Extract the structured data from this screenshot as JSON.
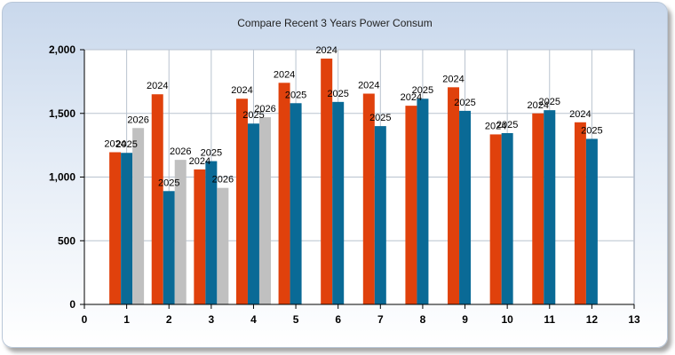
{
  "chart_data": {
    "type": "bar",
    "title": "Compare Recent 3 Years Power Consum",
    "xlabel": "",
    "ylabel": "",
    "x_ticks": [
      0,
      1,
      2,
      3,
      4,
      5,
      6,
      7,
      8,
      9,
      10,
      11,
      12,
      13
    ],
    "xlim": [
      0,
      13
    ],
    "ylim": [
      0,
      2000
    ],
    "y_ticks": [
      0,
      500,
      1000,
      1500,
      2000
    ],
    "y_tick_labels": [
      "0",
      "500",
      "1,000",
      "1,500",
      "2,000"
    ],
    "grid": true,
    "legend": "none",
    "series": [
      {
        "label": "2024",
        "color": "#e0410c",
        "x": [
          1,
          2,
          3,
          4,
          5,
          6,
          7,
          8,
          9,
          10,
          11,
          12
        ],
        "values": [
          1195,
          1650,
          1060,
          1615,
          1740,
          1930,
          1655,
          1560,
          1705,
          1335,
          1500,
          1430
        ]
      },
      {
        "label": "2025",
        "color": "#0a6a96",
        "x": [
          1,
          2,
          3,
          4,
          5,
          6,
          7,
          8,
          9,
          10,
          11,
          12
        ],
        "values": [
          1190,
          890,
          1125,
          1420,
          1580,
          1590,
          1400,
          1615,
          1520,
          1345,
          1525,
          1300
        ]
      },
      {
        "label": "2026",
        "color": "#c0c0c0",
        "x": [
          1,
          2,
          3,
          4
        ],
        "values": [
          1385,
          1135,
          915,
          1470
        ]
      }
    ]
  }
}
